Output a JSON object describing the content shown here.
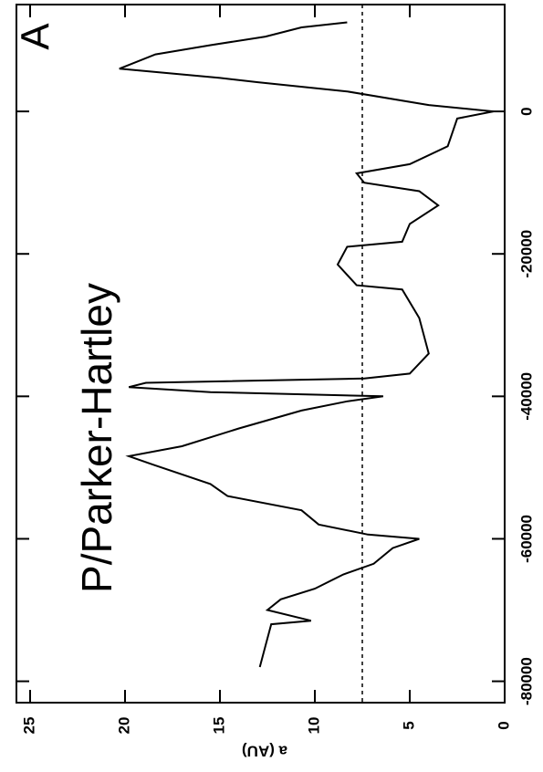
{
  "chart_data": {
    "type": "line",
    "title": "P/Parker-Hartley",
    "panel_label": "A",
    "y_label": "a (AU)",
    "x": [
      -78000,
      -75000,
      -72000,
      -71500,
      -70000,
      -68500,
      -67000,
      -65000,
      -63500,
      -61300,
      -60000,
      -59400,
      -58000,
      -56000,
      -54000,
      -52300,
      -49700,
      -48400,
      -47000,
      -44500,
      -42000,
      -40700,
      -40000,
      -39400,
      -38700,
      -38100,
      -37500,
      -36800,
      -34000,
      -29000,
      -25000,
      -24400,
      -21500,
      -19000,
      -18300,
      -15800,
      -13200,
      -11200,
      -10000,
      -8700,
      -7400,
      -4900,
      -1000,
      0,
      900,
      2800,
      4100,
      4700,
      6000,
      8000,
      9300,
      10500,
      11800,
      12500
    ],
    "series": [
      {
        "name": "a",
        "color": "#000000",
        "values": [
          12.9,
          12.6,
          12.3,
          10.2,
          12.5,
          11.8,
          10.0,
          8.5,
          6.9,
          5.9,
          4.5,
          7.2,
          9.8,
          10.7,
          14.6,
          15.5,
          18.4,
          19.8,
          17.0,
          14.0,
          10.7,
          8.3,
          6.4,
          15.5,
          19.8,
          18.9,
          7.4,
          5.0,
          4.0,
          4.5,
          5.4,
          7.8,
          8.8,
          8.3,
          5.4,
          5.0,
          3.5,
          4.5,
          7.4,
          7.8,
          5.0,
          3.0,
          2.5,
          0.6,
          4.0,
          8.3,
          13.0,
          15.0,
          20.3,
          18.4,
          15.5,
          12.6,
          10.7,
          8.3
        ]
      }
    ],
    "reference_line": 7.5,
    "xlim": [
      -83000,
      15000
    ],
    "xticks": [
      -80000,
      -60000,
      -40000,
      -20000,
      0
    ],
    "ylim": [
      0,
      25
    ],
    "yticks": [
      0,
      5,
      10,
      15,
      20,
      25
    ]
  }
}
